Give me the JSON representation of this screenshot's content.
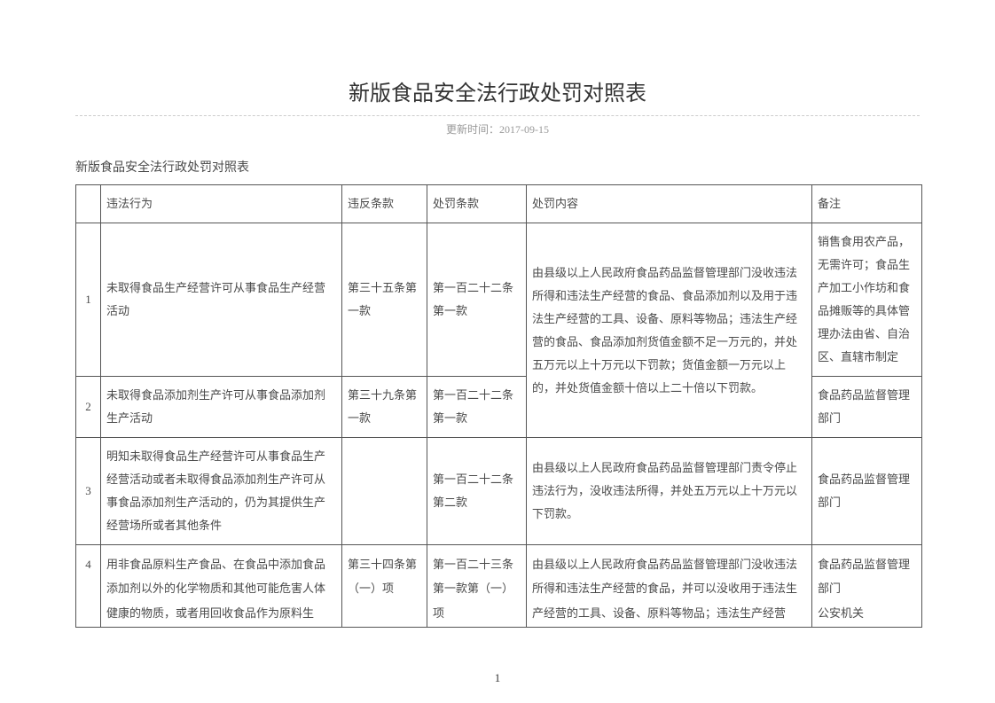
{
  "main_title": "新版食品安全法行政处罚对照表",
  "update_time_label": "更新时间：",
  "update_time_value": "2017-09-15",
  "sub_title": "新版食品安全法行政处罚对照表",
  "page_number": "1",
  "table": {
    "headers": {
      "idx": "",
      "behavior": "违法行为",
      "article": "违反条款",
      "penalty_article": "处罚条款",
      "penalty_content": "处罚内容",
      "remark": "备注"
    },
    "rows": [
      {
        "idx": "1",
        "behavior": "未取得食品生产经营许可从事食品生产经营活动",
        "article": "第三十五条第一款",
        "penalty_article": "第一百二十二条第一款",
        "remark": "销售食用农产品，无需许可；食品生产加工小作坊和食品摊贩等的具体管理办法由省、自治区、直辖市制定"
      },
      {
        "idx": "2",
        "behavior": "未取得食品添加剂生产许可从事食品添加剂生产活动",
        "article": "第三十九条第一款",
        "penalty_article": "第一百二十二条第一款",
        "remark": "食品药品监督管理部门"
      },
      {
        "idx": "3",
        "behavior": "明知未取得食品生产经营许可从事食品生产经营活动或者未取得食品添加剂生产许可从事食品添加剂生产活动的，仍为其提供生产经营场所或者其他条件",
        "article": "",
        "penalty_article": "第一百二十二条第二款",
        "penalty_content": "由县级以上人民政府食品药品监督管理部门责令停止违法行为，没收违法所得，并处五万元以上十万元以下罚款。",
        "remark": "食品药品监督管理部门"
      },
      {
        "idx": "4",
        "behavior": "用非食品原料生产食品、在食品中添加食品添加剂以外的化学物质和其他可能危害人体健康的物质，或者用回收食品作为原料生",
        "article": "第三十四条第（一）项",
        "penalty_article": "第一百二十三条第一款第（一）项",
        "penalty_content": "由县级以上人民政府食品药品监督管理部门没收违法所得和违法生产经营的食品，并可以没收用于违法生产经营的工具、设备、原料等物品；违法生产经营",
        "remark": "食品药品监督管理部门\n公安机关"
      }
    ],
    "merged_penalty_content_r1r2": "由县级以上人民政府食品药品监督管理部门没收违法所得和违法生产经营的食品、食品添加剂以及用于违法生产经营的工具、设备、原料等物品；违法生产经营的食品、食品添加剂货值金额不足一万元的，并处五万元以上十万元以下罚款；货值金额一万元以上的，并处货值金额十倍以上二十倍以下罚款。"
  },
  "colors": {
    "text": "#4a4a4a",
    "border": "#555555",
    "light_text": "#999999",
    "dash_line": "#cccccc",
    "background": "#ffffff"
  }
}
